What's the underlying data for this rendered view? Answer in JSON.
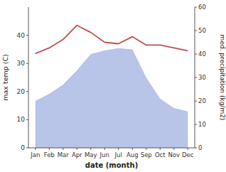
{
  "chart_data": {
    "type": "line",
    "xlabel": "date (month)",
    "ylabel": "max temp (C)",
    "y2label": "med. precipitation (kg/m2)",
    "categories": [
      "Jan",
      "Feb",
      "Mar",
      "Apr",
      "May",
      "Jun",
      "Jul",
      "Aug",
      "Sep",
      "Oct",
      "Nov",
      "Dec"
    ],
    "series": [
      {
        "type": "area",
        "axis": "y2",
        "color": "#b8c4e8",
        "values": [
          20.0,
          23.0,
          27.0,
          33.0,
          40.0,
          41.5,
          42.5,
          42.0,
          30.0,
          21.0,
          17.0,
          15.5
        ]
      },
      {
        "type": "line",
        "color": "#c0504d",
        "values": [
          33.5,
          35.5,
          38.5,
          43.5,
          41.0,
          37.5,
          37.0,
          39.5,
          36.5,
          36.5,
          35.5,
          34.5
        ]
      }
    ],
    "ylim": [
      0,
      50
    ],
    "yticks": [
      0,
      10,
      20,
      30,
      40
    ],
    "y2lim": [
      0,
      60
    ],
    "y2ticks": [
      0,
      10,
      20,
      30,
      40,
      50,
      60
    ],
    "grid": false
  }
}
